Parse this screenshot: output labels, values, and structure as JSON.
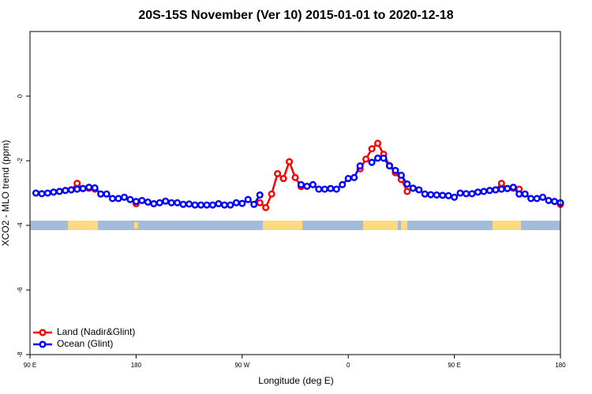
{
  "chart_data": {
    "type": "line",
    "title": "20S-15S November (Ver 10)   2015-01-01 to 2020-12-18",
    "x_label": "Longitude (deg E)",
    "y_label": "XCO2 - MLO trend (ppm)",
    "xlim": [
      90,
      540
    ],
    "xticks": [
      {
        "value": 90,
        "label": "90 E"
      },
      180,
      {
        "value": 270,
        "label": "90 W"
      },
      {
        "value": 360,
        "label": "0"
      },
      {
        "value": 450,
        "label": "90 E"
      },
      {
        "value": 540,
        "label": "180"
      }
    ],
    "ylim": [
      -8,
      2
    ],
    "yticks": [
      -8,
      -6,
      -4,
      -2,
      0
    ],
    "legend": "bottom-left",
    "series": [
      {
        "name": "Land (Nadir&Glint)",
        "color": "#ff0000",
        "x": [
          125,
          130,
          135,
          140,
          145,
          180,
          285,
          290,
          295,
          300,
          305,
          310,
          315,
          320,
          370,
          375,
          380,
          385,
          390,
          395,
          400,
          405,
          410,
          485,
          490,
          495,
          500,
          505,
          540
        ],
        "values": [
          -2.9,
          -2.7,
          -2.86,
          -2.85,
          -2.88,
          -3.33,
          -3.3,
          -3.45,
          -3.03,
          -2.4,
          -2.55,
          -2.03,
          -2.52,
          -2.8,
          -2.25,
          -1.95,
          -1.63,
          -1.46,
          -1.8,
          -2.15,
          -2.37,
          -2.58,
          -2.95,
          -2.9,
          -2.7,
          -2.86,
          -2.85,
          -2.88,
          -3.35
        ]
      },
      {
        "name": "Ocean (Glint)",
        "color": "#0000ff",
        "x": [
          95,
          100,
          105,
          110,
          115,
          120,
          125,
          130,
          135,
          140,
          145,
          150,
          155,
          160,
          165,
          170,
          175,
          180,
          185,
          190,
          195,
          200,
          205,
          210,
          215,
          220,
          225,
          230,
          235,
          240,
          245,
          250,
          255,
          260,
          265,
          270,
          275,
          280,
          285,
          320,
          325,
          330,
          335,
          340,
          345,
          350,
          355,
          360,
          365,
          370,
          380,
          385,
          390,
          395,
          400,
          405,
          410,
          415,
          420,
          425,
          430,
          435,
          440,
          445,
          450,
          455,
          460,
          465,
          470,
          475,
          480,
          485,
          490,
          495,
          500,
          505,
          510,
          515,
          520,
          525,
          530,
          535,
          540
        ],
        "values": [
          -3.0,
          -3.02,
          -3.0,
          -2.97,
          -2.95,
          -2.92,
          -2.9,
          -2.88,
          -2.86,
          -2.82,
          -2.84,
          -3.03,
          -3.03,
          -3.17,
          -3.17,
          -3.13,
          -3.2,
          -3.26,
          -3.23,
          -3.28,
          -3.33,
          -3.3,
          -3.25,
          -3.3,
          -3.3,
          -3.35,
          -3.34,
          -3.37,
          -3.37,
          -3.37,
          -3.37,
          -3.33,
          -3.37,
          -3.37,
          -3.3,
          -3.32,
          -3.2,
          -3.35,
          -3.06,
          -2.74,
          -2.79,
          -2.74,
          -2.88,
          -2.88,
          -2.86,
          -2.88,
          -2.74,
          -2.55,
          -2.52,
          -2.16,
          -2.05,
          -1.92,
          -1.92,
          -2.16,
          -2.3,
          -2.45,
          -2.72,
          -2.85,
          -2.9,
          -3.03,
          -3.05,
          -3.06,
          -3.07,
          -3.08,
          -3.13,
          -3.0,
          -3.02,
          -3.02,
          -2.97,
          -2.95,
          -2.92,
          -2.9,
          -2.88,
          -2.86,
          -2.82,
          -3.03,
          -3.03,
          -3.17,
          -3.17,
          -3.13,
          -3.23,
          -3.26,
          -3.3
        ]
      }
    ]
  }
}
